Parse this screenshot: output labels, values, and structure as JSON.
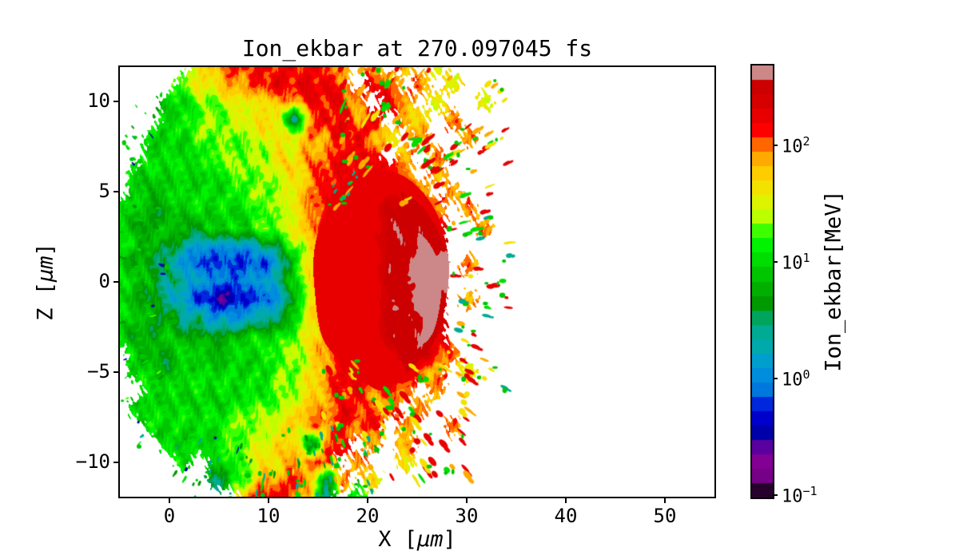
{
  "chart_data": {
    "type": "heatmap",
    "title": "Ion_ekbar at 270.097045 fs",
    "xlabel": {
      "pre": "X [",
      "unit": "μm",
      "post": "]"
    },
    "ylabel": {
      "pre": "Z [",
      "unit": "μm",
      "post": "]"
    },
    "xlim": [
      -5,
      55
    ],
    "ylim": [
      -11.9,
      11.9
    ],
    "xticks": {
      "values": [
        0,
        10,
        20,
        30,
        40,
        50
      ],
      "labels": [
        "0",
        "10",
        "20",
        "30",
        "40",
        "50"
      ]
    },
    "yticks": {
      "values": [
        10,
        5,
        0,
        -5,
        -10
      ],
      "labels": [
        "10",
        "5",
        "0",
        "−5",
        "−10"
      ]
    },
    "colorbar": {
      "label": "Ion_ekbar[MeV]",
      "scale": "log",
      "vmin": 0.095,
      "vmax": 480,
      "levels": 30,
      "ticks": [
        {
          "lv": 2,
          "base": "10",
          "sup": "2"
        },
        {
          "lv": 1,
          "base": "10",
          "sup": "1"
        },
        {
          "lv": 0,
          "base": "10",
          "sup": "0"
        },
        {
          "lv": -1,
          "base": "10",
          "sup": "−1"
        }
      ],
      "colormap_name": "nipy_spectral",
      "colormap_stops": [
        "#000000",
        "#770088",
        "#880099",
        "#0000aa",
        "#0000dd",
        "#0077dd",
        "#0099dd",
        "#00aaaa",
        "#00aa88",
        "#009900",
        "#00bb00",
        "#00dd00",
        "#00ff00",
        "#bbff00",
        "#eeee00",
        "#ffcc00",
        "#ff9900",
        "#ff0000",
        "#dd0000",
        "#cc0000",
        "#cccccc"
      ]
    },
    "grid": {
      "x0": -5,
      "dx": 1.6,
      "z0": 12,
      "dz": -1,
      "encoding": {
        "0": 0.15,
        "1": 0.3,
        "2": 0.6,
        "3": 1.2,
        "4": 2.5,
        "5": 5,
        "6": 10,
        "7": 20,
        "8": 40,
        "9": 80,
        "a": 160,
        "b": 320,
        "c": 480
      },
      "rows": [
        ".....89aaaaaaa9.9.9.8....",
        "....78899aaaaa9.a9.9.8...",
        "...667788899aaa9.a9.8..8.",
        "...6677788839aa9a.98.9...",
        "..666777788899aa98.9..9..",
        "..666677778899aaa.9.9....",
        ".666666777889aaaaa9.9....",
        ".656666677789aaaaaa9.9...",
        "6655666667789aaaabba9.9..",
        "6556556667789aaaabbba..9.",
        "66554333345789aaabbbb....",
        "65543222223689aaabbcc.9..",
        "66544332334689aaabbcc....",
        "65543211223589aaabbcb.9..",
        "66554433344689aaabbbb....",
        "65565555666789aaabbba....",
        ".6556656667789aaaabba9...",
        ".6656666667789aaaaa99.8..",
        "..666666667789aa9a9.9....",
        ".6666666777899aa99.9.....",
        "..666667778899a9a.9..9...",
        "...66667788949a.9.9......",
        "....6.6678899a.9..8......",
        "......46799a949.8........",
        "........9aa984.6........."
      ]
    },
    "dome": [
      {
        "cx": 21.4,
        "cz": 0.2,
        "rx": 6.9,
        "rz": 6.1,
        "v": 160,
        "clip": null
      },
      {
        "cx": 21.6,
        "cz": 0.0,
        "rx": 6.4,
        "rz": 5.3,
        "v": 320,
        "clip": 23.6
      },
      {
        "cx": 21.9,
        "cz": -0.5,
        "rx": 5.6,
        "rz": 4.0,
        "v": 490,
        "clip": 25.3
      }
    ],
    "debris": {
      "streak_origin": [
        11,
        0
      ],
      "regions": [
        {
          "x": [
            16.5,
            29
          ],
          "z": [
            4,
            12
          ],
          "n": 70,
          "s": 1.0,
          "values": [
            160,
            160,
            160,
            160,
            80,
            80,
            80,
            40,
            40,
            10
          ]
        },
        {
          "x": [
            28,
            34.5
          ],
          "z": [
            -6,
            8
          ],
          "n": 45,
          "s": 0.8,
          "values": [
            160,
            160,
            160,
            80,
            80,
            40,
            40,
            10,
            10,
            2.5
          ]
        },
        {
          "x": [
            15.5,
            31
          ],
          "z": [
            -11,
            -4.5
          ],
          "n": 75,
          "s": 1.0,
          "values": [
            160,
            160,
            160,
            160,
            80,
            80,
            80,
            40,
            40,
            10
          ]
        },
        {
          "x": [
            12,
            21
          ],
          "z": [
            -12,
            -8
          ],
          "n": 35,
          "s": 0.6,
          "values": [
            10,
            10,
            5,
            5,
            2.5,
            2.5,
            40
          ]
        },
        {
          "x": [
            -5.2,
            -0.5
          ],
          "z": [
            -9,
            10
          ],
          "n": 40,
          "s": 0.5,
          "values": [
            10,
            10,
            10,
            5,
            5,
            20,
            2.5,
            0.3
          ]
        },
        {
          "x": [
            16.5,
            19
          ],
          "z": [
            4.5,
            6.5
          ],
          "n": 10,
          "s": 0.5,
          "values": [
            2.5,
            2.5,
            10
          ]
        },
        {
          "x": [
            29,
            34
          ],
          "z": [
            6,
            11
          ],
          "n": 12,
          "s": 0.8,
          "values": [
            160,
            80,
            40
          ]
        },
        {
          "x": [
            0,
            12
          ],
          "z": [
            -12,
            -8.5
          ],
          "n": 30,
          "s": 0.5,
          "values": [
            10,
            5,
            5,
            2.5,
            2.5,
            0.3
          ]
        }
      ]
    }
  }
}
